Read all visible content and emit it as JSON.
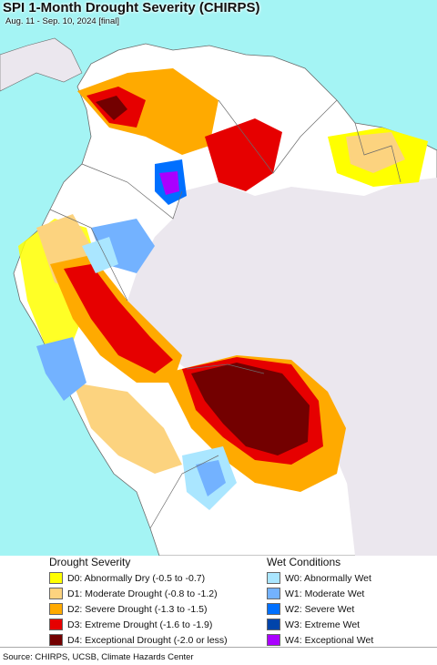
{
  "title": "SPI 1-Month Drought Severity (CHIRPS)",
  "subtitle": "Aug. 11 - Sep. 10, 2024 [final]",
  "legend": {
    "drought": {
      "heading": "Drought Severity",
      "items": [
        {
          "label": "D0: Abnormally Dry (-0.5 to -0.7)",
          "color": "#ffff00"
        },
        {
          "label": "D1: Moderate Drought (-0.8 to -1.2)",
          "color": "#fcd37f"
        },
        {
          "label": "D2: Severe Drought (-1.3 to -1.5)",
          "color": "#ffaa00"
        },
        {
          "label": "D3: Extreme Drought (-1.6 to -1.9)",
          "color": "#e60000"
        },
        {
          "label": "D4: Exceptional Drought (-2.0 or less)",
          "color": "#730000"
        }
      ]
    },
    "wet": {
      "heading": "Wet Conditions",
      "items": [
        {
          "label": "W0: Abnormally Wet",
          "color": "#aae6ff"
        },
        {
          "label": "W1: Moderate Wet",
          "color": "#73b2ff"
        },
        {
          "label": "W2: Severe Wet",
          "color": "#0070ff"
        },
        {
          "label": "W3: Extreme Wet",
          "color": "#0044aa"
        },
        {
          "label": "W4: Exceptional Wet",
          "color": "#aa00ff"
        }
      ]
    }
  },
  "colors": {
    "ocean": "#a4f4f4",
    "no_data_land": "#ebe7ee",
    "normal_land": "#ffffff",
    "border": "#6b6b6b"
  },
  "source": "Source: CHIRPS, UCSB, Climate Hazards Center"
}
